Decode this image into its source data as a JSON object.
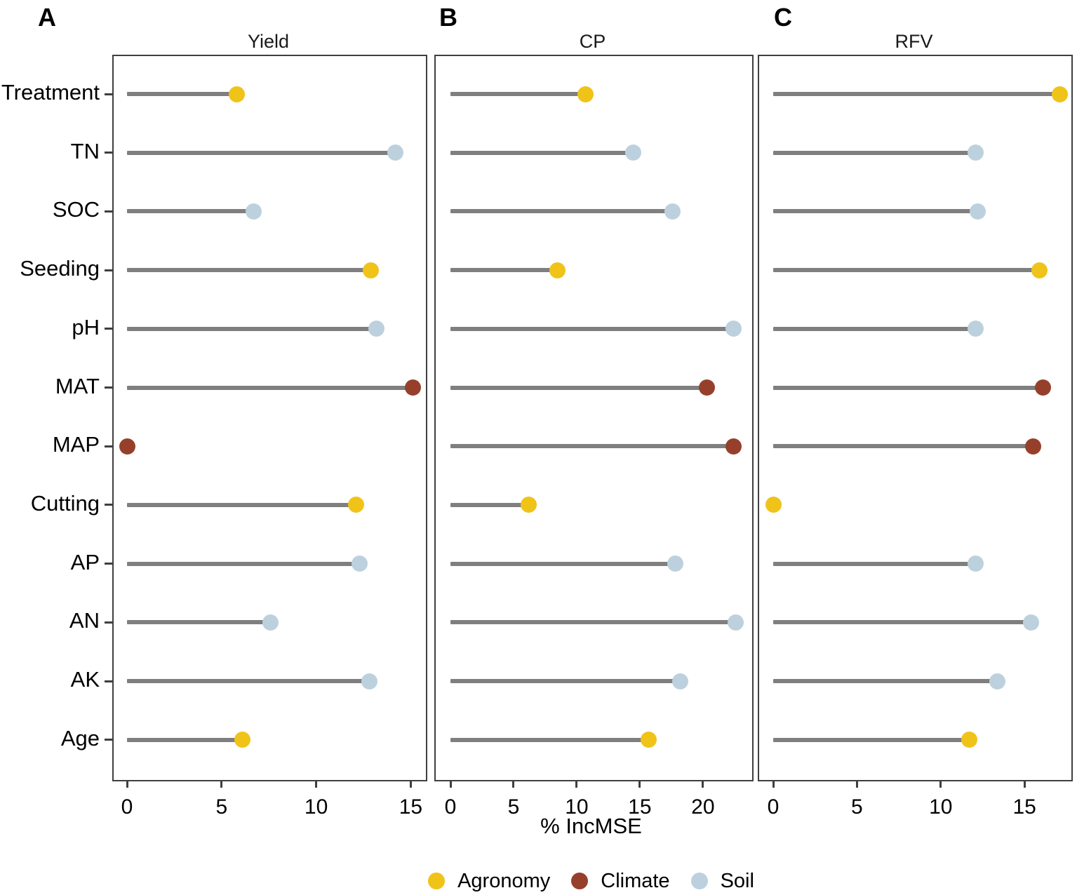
{
  "figure": {
    "panel_letters": [
      "A",
      "B",
      "C"
    ],
    "xlabel": "% IncMSE"
  },
  "legend": {
    "items": [
      {
        "label": "Agronomy",
        "color": "#F0C319"
      },
      {
        "label": "Climate",
        "color": "#96402B"
      },
      {
        "label": "Soil",
        "color": "#BCD1DD"
      }
    ]
  },
  "chart_data": {
    "type": "lollipop",
    "orientation": "horizontal",
    "xlabel": "% IncMSE",
    "grid": false,
    "legend_position": "bottom",
    "stem_color": "#7f7f7f",
    "categories": [
      "Treatment",
      "TN",
      "SOC",
      "Seeding",
      "pH",
      "MAT",
      "MAP",
      "Cutting",
      "AP",
      "AN",
      "AK",
      "Age"
    ],
    "category_groups": {
      "Treatment": "Agronomy",
      "TN": "Soil",
      "SOC": "Soil",
      "Seeding": "Agronomy",
      "pH": "Soil",
      "MAT": "Climate",
      "MAP": "Climate",
      "Cutting": "Agronomy",
      "AP": "Soil",
      "AN": "Soil",
      "AK": "Soil",
      "Age": "Agronomy"
    },
    "group_colors": {
      "Agronomy": "#F0C319",
      "Climate": "#96402B",
      "Soil": "#BCD1DD"
    },
    "panels": [
      {
        "label": "A",
        "title": "Yield",
        "values": [
          5.8,
          14.2,
          6.7,
          12.9,
          13.2,
          15.1,
          0,
          12.1,
          12.3,
          7.6,
          12.8,
          6.1
        ],
        "xlim": [
          0,
          15.8
        ],
        "xticks": [
          0,
          5,
          10,
          15
        ]
      },
      {
        "label": "B",
        "title": "CP",
        "values": [
          10.7,
          14.5,
          17.6,
          8.5,
          22.4,
          20.3,
          22.4,
          6.2,
          17.8,
          22.6,
          18.2,
          15.7
        ],
        "xlim": [
          0,
          23.9
        ],
        "xticks": [
          0,
          5,
          10,
          15,
          20
        ]
      },
      {
        "label": "C",
        "title": "RFV",
        "values": [
          17.1,
          12.1,
          12.2,
          15.9,
          12.1,
          16.1,
          15.5,
          0,
          12.1,
          15.4,
          13.4,
          11.7
        ],
        "xlim": [
          0,
          17.8
        ],
        "xticks": [
          0,
          5,
          10,
          15
        ]
      }
    ]
  }
}
